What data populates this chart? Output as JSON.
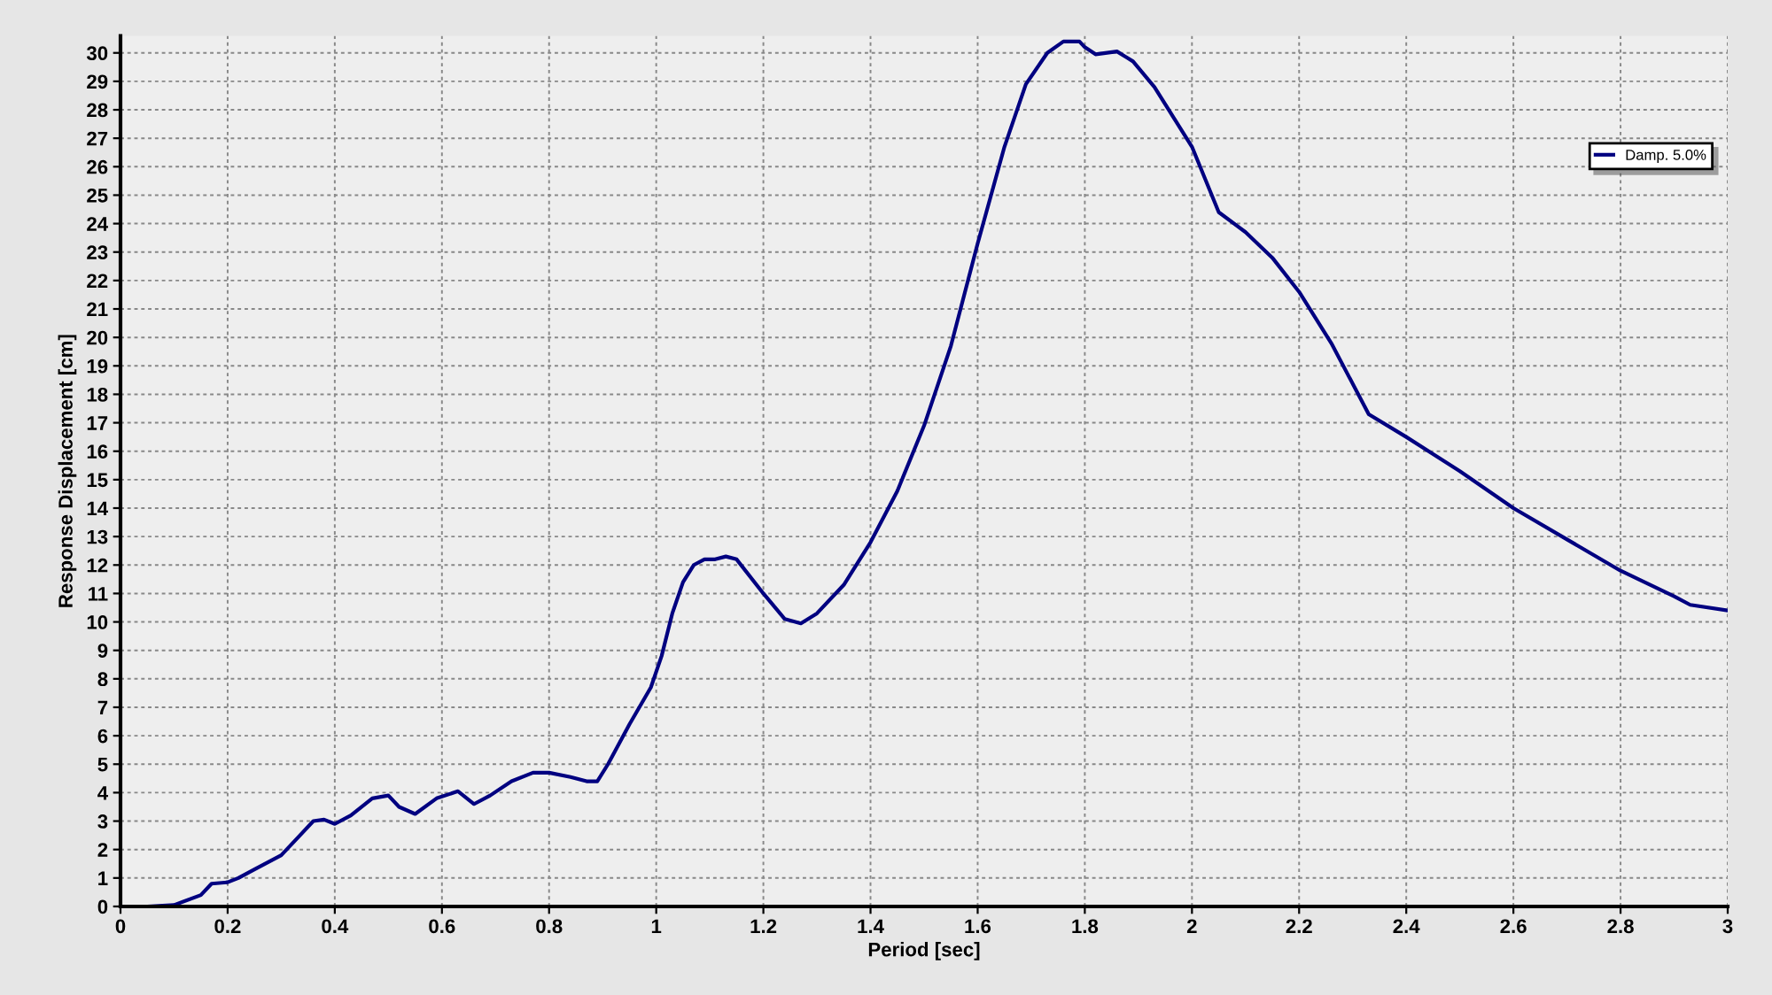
{
  "chart_data": {
    "type": "line",
    "xlabel": "Period [sec]",
    "ylabel": "Response Displacement [cm]",
    "xlim": [
      0,
      3
    ],
    "ylim": [
      0,
      30.6
    ],
    "xticks": [
      0,
      0.2,
      0.4,
      0.6,
      0.8,
      1,
      1.2,
      1.4,
      1.6,
      1.8,
      2,
      2.2,
      2.4,
      2.6,
      2.8,
      3
    ],
    "yticks": [
      0,
      1,
      2,
      3,
      4,
      5,
      6,
      7,
      8,
      9,
      10,
      11,
      12,
      13,
      14,
      15,
      16,
      17,
      18,
      19,
      20,
      21,
      22,
      23,
      24,
      25,
      26,
      27,
      28,
      29,
      30
    ],
    "grid": true,
    "legend": "top right",
    "line_style": "solid",
    "marker": "none",
    "x": [
      0,
      0.05,
      0.1,
      0.15,
      0.17,
      0.2,
      0.22,
      0.25,
      0.3,
      0.33,
      0.36,
      0.38,
      0.4,
      0.43,
      0.47,
      0.5,
      0.52,
      0.55,
      0.59,
      0.63,
      0.66,
      0.69,
      0.73,
      0.77,
      0.8,
      0.84,
      0.87,
      0.89,
      0.91,
      0.95,
      0.99,
      1.01,
      1.03,
      1.05,
      1.07,
      1.09,
      1.11,
      1.13,
      1.15,
      1.2,
      1.24,
      1.27,
      1.3,
      1.35,
      1.4,
      1.45,
      1.5,
      1.55,
      1.6,
      1.65,
      1.69,
      1.73,
      1.76,
      1.79,
      1.8,
      1.82,
      1.86,
      1.89,
      1.93,
      2,
      2.05,
      2.1,
      2.15,
      2.2,
      2.26,
      2.33,
      2.4,
      2.5,
      2.6,
      2.7,
      2.8,
      2.9,
      2.93,
      3
    ],
    "series": [
      {
        "name": "Damp. 5.0%",
        "color": "#000080",
        "values": [
          0,
          0,
          0.05,
          0.4,
          0.8,
          0.85,
          1.0,
          1.3,
          1.8,
          2.4,
          3.0,
          3.05,
          2.9,
          3.2,
          3.8,
          3.9,
          3.5,
          3.25,
          3.8,
          4.05,
          3.6,
          3.9,
          4.4,
          4.7,
          4.7,
          4.55,
          4.4,
          4.4,
          5.0,
          6.4,
          7.7,
          8.8,
          10.3,
          11.4,
          12.0,
          12.2,
          12.2,
          12.3,
          12.2,
          11.0,
          10.1,
          9.95,
          10.3,
          11.3,
          12.8,
          14.6,
          16.9,
          19.7,
          23.3,
          26.7,
          28.9,
          30.0,
          30.4,
          30.4,
          30.2,
          29.95,
          30.05,
          29.7,
          28.8,
          26.7,
          24.4,
          23.7,
          22.8,
          21.6,
          19.8,
          17.3,
          16.5,
          15.3,
          14.0,
          12.9,
          11.8,
          10.9,
          10.6,
          10.4
        ]
      }
    ]
  }
}
